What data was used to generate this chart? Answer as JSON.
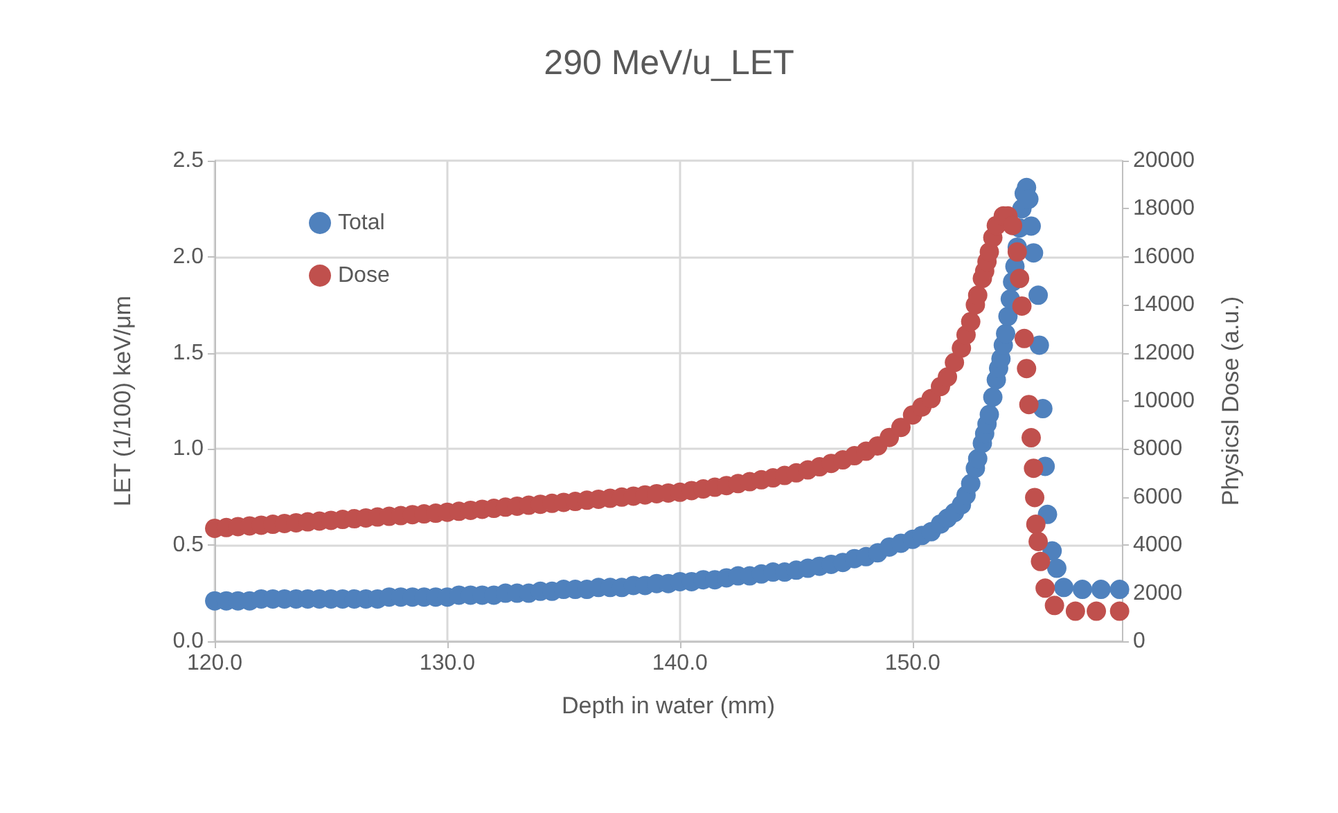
{
  "chart_data": {
    "type": "scatter",
    "title": "290 MeV/u_LET",
    "xlabel": "Depth in water (mm)",
    "ylabel": "LET (1/100) keV/μm",
    "y2label": "Physicsl Dose (a.u.)",
    "xlim": [
      120,
      159
    ],
    "xticks": [
      {
        "value": 120,
        "label": "120.0"
      },
      {
        "value": 130,
        "label": "130.0"
      },
      {
        "value": 140,
        "label": "140.0"
      },
      {
        "value": 150,
        "label": "150.0"
      }
    ],
    "ylim": [
      0,
      2.5
    ],
    "yticks": [
      {
        "value": 0,
        "label": "0.0"
      },
      {
        "value": 0.5,
        "label": "0.5"
      },
      {
        "value": 1,
        "label": "1.0"
      },
      {
        "value": 1.5,
        "label": "1.5"
      },
      {
        "value": 2,
        "label": "2.0"
      },
      {
        "value": 2.5,
        "label": "2.5"
      }
    ],
    "y2lim": [
      0,
      20000
    ],
    "y2ticks": [
      0,
      2000,
      4000,
      6000,
      8000,
      10000,
      12000,
      14000,
      16000,
      18000,
      20000
    ],
    "grid": true,
    "legend": "top left",
    "marker": "circle",
    "series": [
      {
        "name": "Total",
        "color": "#4f81bd",
        "x": [
          120,
          120.5,
          121,
          121.5,
          122,
          122.5,
          123,
          123.5,
          124,
          124.5,
          125,
          125.5,
          126,
          126.5,
          127,
          127.5,
          128,
          128.5,
          129,
          129.5,
          130,
          130.5,
          131,
          131.5,
          132,
          132.5,
          133,
          133.5,
          134,
          134.5,
          135,
          135.5,
          136,
          136.5,
          137,
          137.5,
          138,
          138.5,
          139,
          139.5,
          140,
          140.5,
          141,
          141.5,
          142,
          142.5,
          143,
          143.5,
          144,
          144.5,
          145,
          145.5,
          146,
          146.5,
          147,
          147.5,
          148,
          148.5,
          149,
          149.5,
          150,
          150.4,
          150.8,
          151.2,
          151.5,
          151.8,
          152.1,
          152.3,
          152.5,
          152.7,
          152.8,
          153,
          153.1,
          153.2,
          153.3,
          153.45,
          153.6,
          153.7,
          153.8,
          153.9,
          154,
          154.1,
          154.2,
          154.3,
          154.4,
          154.5,
          154.6,
          154.7,
          154.8,
          154.9,
          155,
          155.1,
          155.2,
          155.4,
          155.45,
          155.6,
          155.7,
          155.8,
          156,
          156.2,
          156.5,
          157.3,
          158.1,
          158.9
        ],
        "values": [
          0.21,
          0.21,
          0.21,
          0.21,
          0.22,
          0.22,
          0.22,
          0.22,
          0.22,
          0.22,
          0.22,
          0.22,
          0.22,
          0.22,
          0.22,
          0.23,
          0.23,
          0.23,
          0.23,
          0.23,
          0.23,
          0.24,
          0.24,
          0.24,
          0.24,
          0.25,
          0.25,
          0.25,
          0.26,
          0.26,
          0.27,
          0.27,
          0.27,
          0.28,
          0.28,
          0.28,
          0.29,
          0.29,
          0.3,
          0.3,
          0.31,
          0.31,
          0.32,
          0.32,
          0.33,
          0.34,
          0.34,
          0.35,
          0.36,
          0.36,
          0.37,
          0.38,
          0.39,
          0.4,
          0.41,
          0.43,
          0.44,
          0.46,
          0.49,
          0.51,
          0.53,
          0.55,
          0.57,
          0.61,
          0.64,
          0.67,
          0.71,
          0.76,
          0.82,
          0.9,
          0.95,
          1.03,
          1.08,
          1.13,
          1.18,
          1.27,
          1.36,
          1.42,
          1.47,
          1.54,
          1.6,
          1.69,
          1.78,
          1.87,
          1.95,
          2.05,
          2.15,
          2.25,
          2.33,
          2.36,
          2.3,
          2.16,
          2.02,
          1.8,
          1.54,
          1.21,
          0.91,
          0.66,
          0.47,
          0.38,
          0.28,
          0.27,
          0.27,
          0.27
        ]
      },
      {
        "name": "Dose",
        "color": "#c0504d",
        "axis": "y2",
        "x": [
          120,
          120.5,
          121,
          121.5,
          122,
          122.5,
          123,
          123.5,
          124,
          124.5,
          125,
          125.5,
          126,
          126.5,
          127,
          127.5,
          128,
          128.5,
          129,
          129.5,
          130,
          130.5,
          131,
          131.5,
          132,
          132.5,
          133,
          133.5,
          134,
          134.5,
          135,
          135.5,
          136,
          136.5,
          137,
          137.5,
          138,
          138.5,
          139,
          139.5,
          140,
          140.5,
          141,
          141.5,
          142,
          142.5,
          143,
          143.5,
          144,
          144.5,
          145,
          145.5,
          146,
          146.5,
          147,
          147.5,
          148,
          148.5,
          149,
          149.5,
          150,
          150.4,
          150.8,
          151.2,
          151.5,
          151.8,
          152.1,
          152.3,
          152.5,
          152.7,
          152.8,
          153,
          153.1,
          153.2,
          153.3,
          153.45,
          153.6,
          153.9,
          154.1,
          154.3,
          154.5,
          154.6,
          154.7,
          154.8,
          154.9,
          155,
          155.1,
          155.2,
          155.25,
          155.3,
          155.4,
          155.5,
          155.7,
          156.1,
          157,
          157.9,
          158.9
        ],
        "values": [
          4700,
          4730,
          4770,
          4800,
          4830,
          4870,
          4900,
          4930,
          4970,
          5000,
          5030,
          5070,
          5100,
          5130,
          5170,
          5200,
          5230,
          5270,
          5300,
          5330,
          5370,
          5410,
          5450,
          5490,
          5530,
          5580,
          5620,
          5660,
          5700,
          5740,
          5780,
          5820,
          5870,
          5910,
          5950,
          6000,
          6040,
          6090,
          6140,
          6170,
          6200,
          6270,
          6340,
          6410,
          6480,
          6560,
          6640,
          6720,
          6800,
          6900,
          7010,
          7130,
          7260,
          7400,
          7550,
          7720,
          7910,
          8130,
          8480,
          8900,
          9420,
          9750,
          10100,
          10600,
          11000,
          11600,
          12200,
          12750,
          13300,
          14000,
          14400,
          15100,
          15400,
          15800,
          16200,
          16800,
          17300,
          17700,
          17700,
          17300,
          16200,
          15100,
          13950,
          12600,
          11350,
          9850,
          8470,
          7200,
          5980,
          4870,
          4150,
          3320,
          2210,
          1490,
          1250,
          1250,
          1250
        ]
      }
    ]
  }
}
